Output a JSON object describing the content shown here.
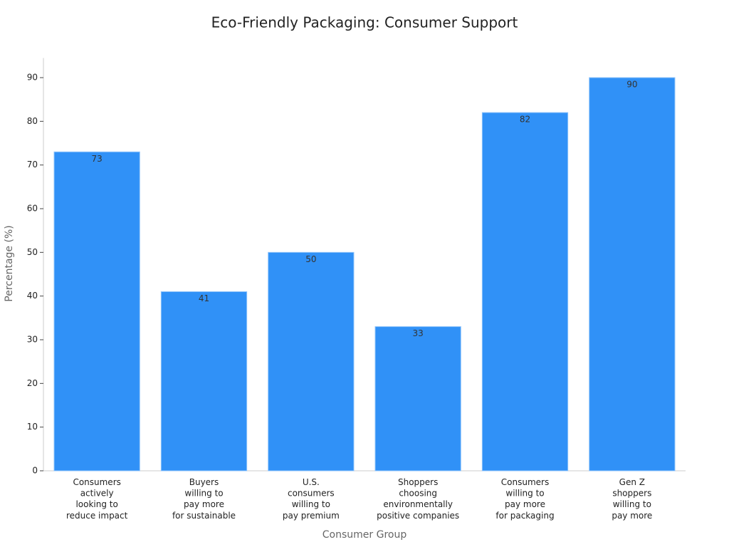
{
  "chart_data": {
    "type": "bar",
    "title": "Eco-Friendly Packaging: Consumer Support",
    "x_label": "Consumer Group",
    "y_label": "Percentage (%)",
    "categories": [
      [
        "Consumers",
        "actively",
        "looking to",
        "reduce impact"
      ],
      [
        "Buyers",
        "willing to",
        "pay more",
        "for sustainable"
      ],
      [
        "U.S.",
        "consumers",
        "willing to",
        "pay premium"
      ],
      [
        "Shoppers",
        "choosing",
        "environmentally",
        "positive companies"
      ],
      [
        "Consumers",
        "willing to",
        "pay more",
        "for packaging"
      ],
      [
        "Gen Z",
        "shoppers",
        "willing to",
        "pay more"
      ]
    ],
    "values": [
      73,
      41,
      50,
      33,
      82,
      90
    ],
    "color": "#3091f7",
    "ylim": [
      0,
      94.5
    ],
    "yticks": [
      0,
      10,
      20,
      30,
      40,
      50,
      60,
      70,
      80,
      90
    ],
    "grid": false
  }
}
